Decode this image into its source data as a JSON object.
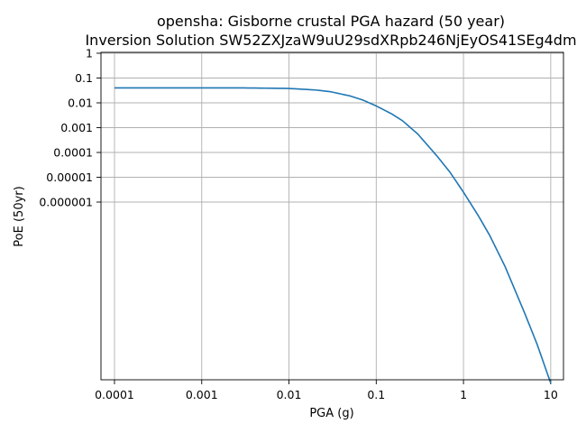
{
  "chart_data": {
    "type": "line",
    "title": "opensha: Gisborne crustal PGA hazard (50 year)",
    "subtitle": "Inversion Solution SW52ZXJzaW9uU29sdXRpb246NjEyOS41SEg4dm",
    "xlabel": "PGA (g)",
    "ylabel": "PoE (50yr)",
    "x_scale": "log",
    "y_scale": "log",
    "xlim": [
      7e-05,
      14
    ],
    "ylim": [
      1e-13,
      1
    ],
    "grid": true,
    "x_ticks": [
      {
        "value": 0.0001,
        "label": "0.0001"
      },
      {
        "value": 0.001,
        "label": "0.001"
      },
      {
        "value": 0.01,
        "label": "0.01"
      },
      {
        "value": 0.1,
        "label": "0.1"
      },
      {
        "value": 1,
        "label": "1"
      },
      {
        "value": 10,
        "label": "10"
      }
    ],
    "y_ticks": [
      {
        "value": 1,
        "label": "1"
      },
      {
        "value": 0.1,
        "label": "0.1"
      },
      {
        "value": 0.01,
        "label": "0.01"
      },
      {
        "value": 0.001,
        "label": "0.001"
      },
      {
        "value": 0.0001,
        "label": "0.0001"
      },
      {
        "value": 1e-05,
        "label": "0.00001"
      },
      {
        "value": 1e-06,
        "label": "0.000001"
      }
    ],
    "series": [
      {
        "color": "#1f77b4",
        "x": [
          0.0001,
          0.0003,
          0.001,
          0.003,
          0.01,
          0.02,
          0.03,
          0.05,
          0.07,
          0.1,
          0.15,
          0.2,
          0.3,
          0.5,
          0.7,
          1,
          1.5,
          2,
          3,
          5,
          7,
          10
        ],
        "y": [
          0.04,
          0.04,
          0.04,
          0.04,
          0.038,
          0.033,
          0.028,
          0.019,
          0.013,
          0.0075,
          0.0036,
          0.0019,
          0.00055,
          7e-05,
          1.6e-05,
          2.5e-06,
          2.6e-07,
          4.5e-08,
          2.5e-09,
          3.5e-11,
          1.8e-12,
          5e-14
        ]
      }
    ]
  }
}
